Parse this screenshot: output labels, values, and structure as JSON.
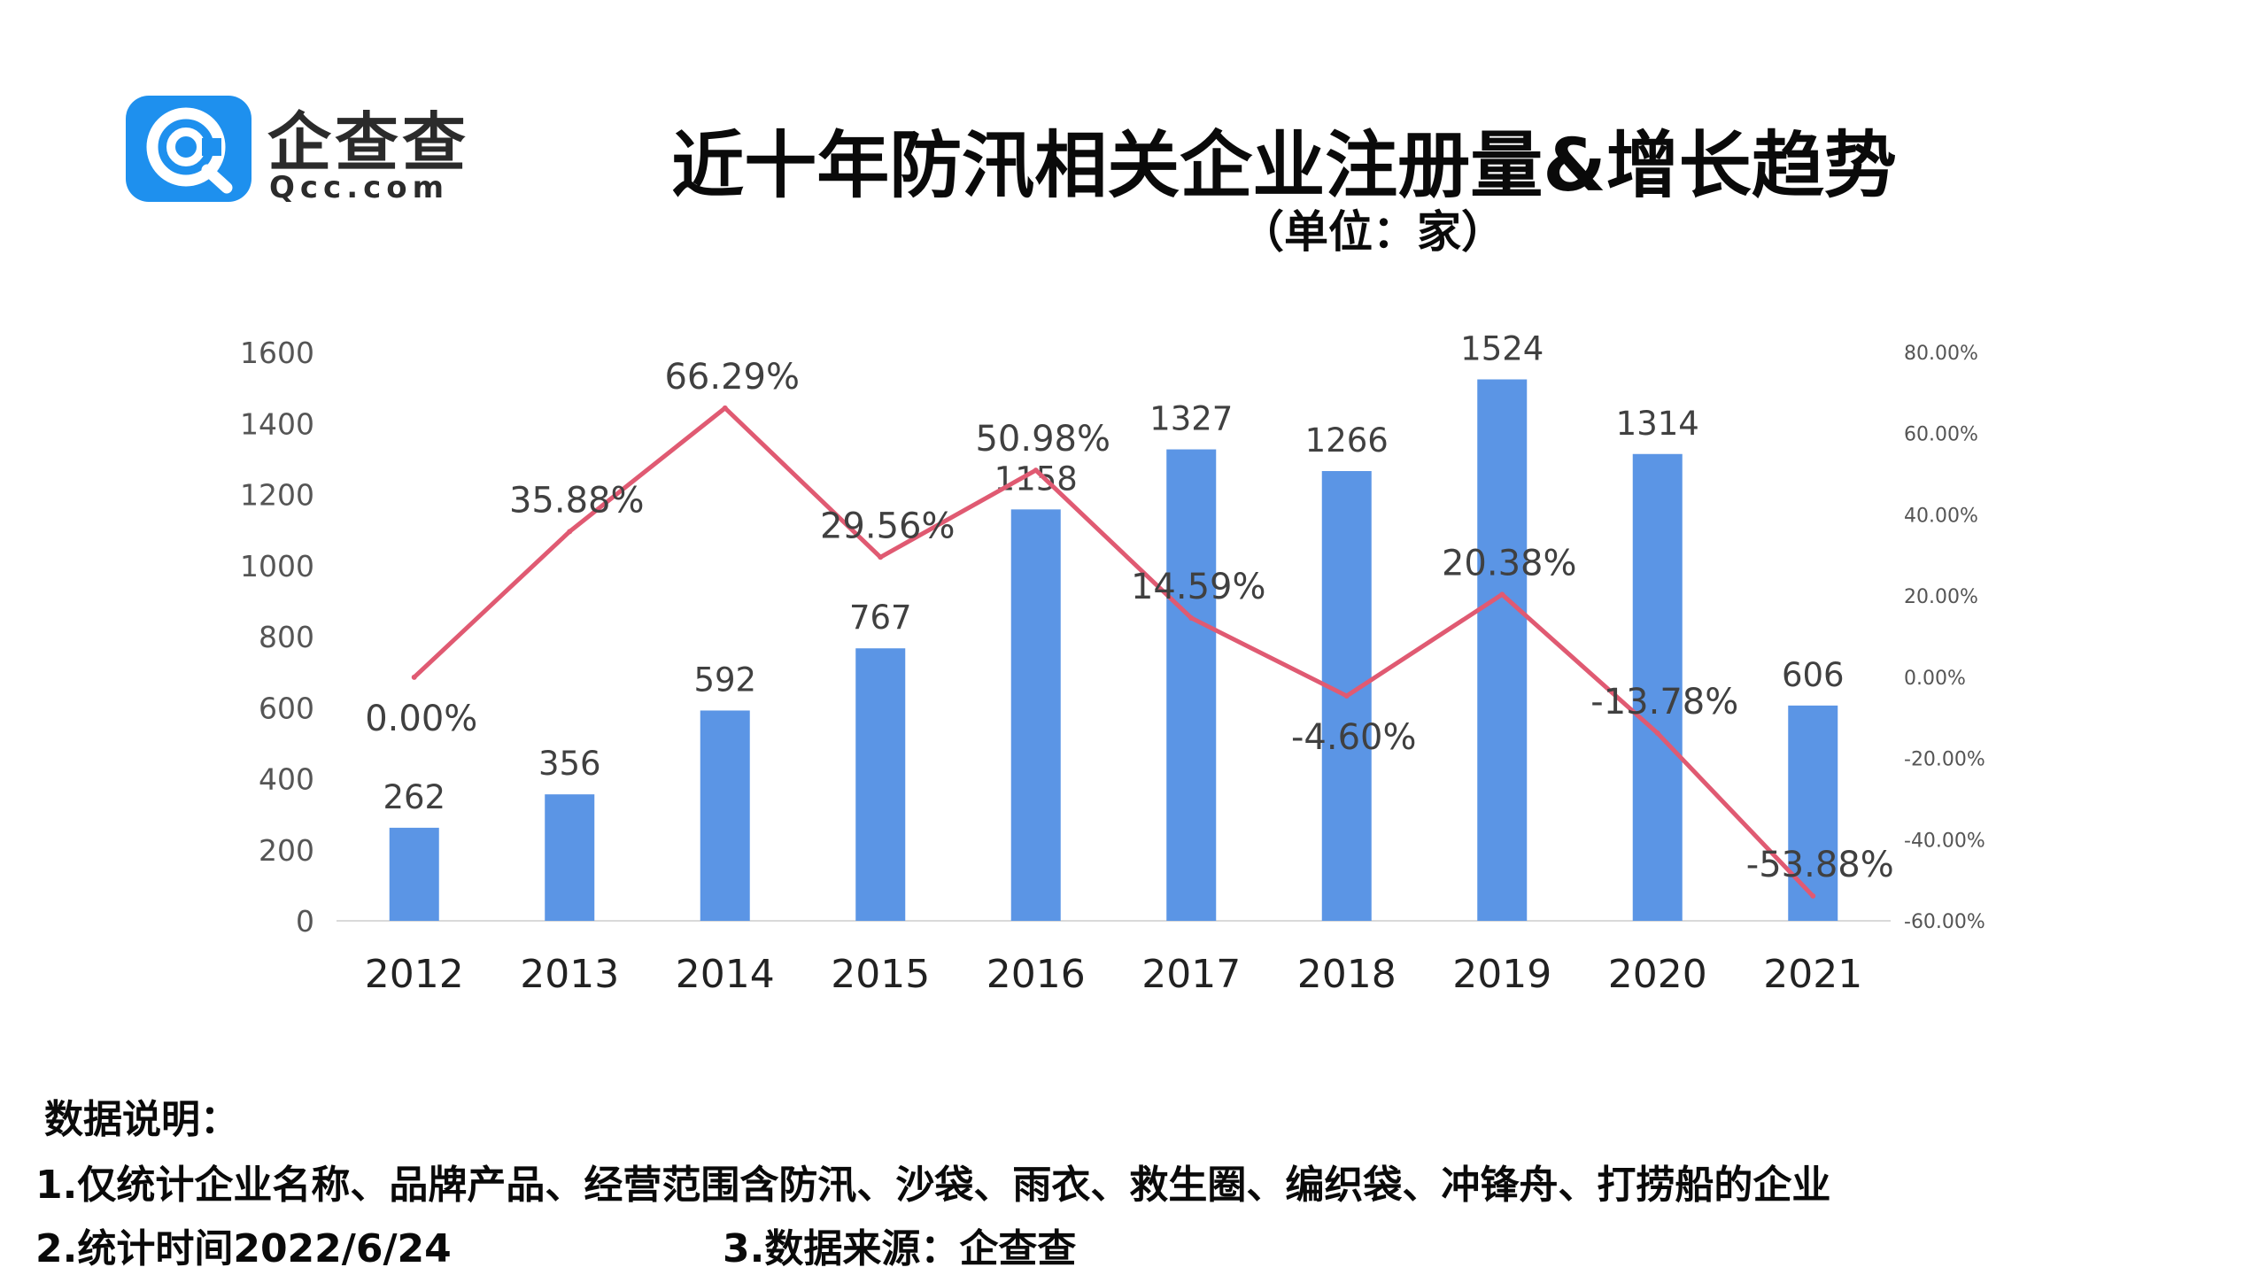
{
  "logo": {
    "name": "企查查",
    "domain": "Qcc.com",
    "brand_color": "#1e90ee"
  },
  "chart_data": {
    "type": "bar",
    "title": "近十年防汛相关企业注册量&增长趋势",
    "subtitle": "（单位：家）",
    "categories": [
      "2012",
      "2013",
      "2014",
      "2015",
      "2016",
      "2017",
      "2018",
      "2019",
      "2020",
      "2021"
    ],
    "series": [
      {
        "type": "bar",
        "values": [
          262,
          356,
          592,
          767,
          1158,
          1327,
          1266,
          1524,
          1314,
          606
        ],
        "color": "#5b95e5",
        "axis": "left"
      },
      {
        "type": "line",
        "values": [
          0.0,
          35.88,
          66.29,
          29.56,
          50.98,
          14.59,
          -4.6,
          20.38,
          -13.78,
          -53.88
        ],
        "labels": [
          "0.00%",
          "35.88%",
          "66.29%",
          "29.56%",
          "50.98%",
          "14.59%",
          "-4.60%",
          "20.38%",
          "-13.78%",
          "-53.88%"
        ],
        "color": "#e05a72",
        "axis": "right"
      }
    ],
    "ylim_left": [
      0,
      1600
    ],
    "yticks_left": [
      "0",
      "200",
      "400",
      "600",
      "800",
      "1000",
      "1200",
      "1400",
      "1600"
    ],
    "ylim_right": [
      -60,
      80
    ],
    "yticks_right": [
      "-60.00%",
      "-40.00%",
      "-20.00%",
      "0.00%",
      "20.00%",
      "40.00%",
      "60.00%",
      "80.00%"
    ],
    "grid": false,
    "legend": "none"
  },
  "notes": {
    "heading": "数据说明：",
    "line1": "1.仅统计企业名称、品牌产品、经营范围含防汛、沙袋、雨衣、救生圈、编织袋、冲锋舟、打捞船的企业",
    "line2_left": "2.统计时间2022/6/24",
    "line2_right": "3.数据来源：企查查"
  }
}
